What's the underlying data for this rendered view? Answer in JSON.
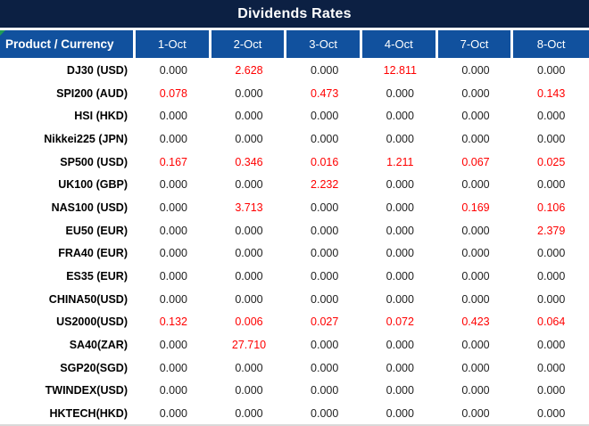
{
  "title": "Dividends Rates",
  "colors": {
    "title_bg": "#0c2043",
    "header_bg": "#11519e",
    "row_gray_label": "#d6d6d6",
    "row_gray_cell": "#eeeeee",
    "red_text": "#ff0000",
    "dark_text": "#1f1f1f",
    "flag_green": "#1f9d55",
    "gridline_white": "#ffffff",
    "gridline_gray": "#e4e4e4"
  },
  "icons": {
    "corner_flag": "green-corner-triangle-icon"
  },
  "table": {
    "product_header": "Product / Currency",
    "date_headers": [
      "1-Oct",
      "2-Oct",
      "3-Oct",
      "4-Oct",
      "7-Oct",
      "8-Oct"
    ],
    "rows": [
      {
        "product": "DJ30 (USD)",
        "values": [
          "0.000",
          "2.628",
          "0.000",
          "12.811",
          "0.000",
          "0.000"
        ],
        "red": [
          1,
          3
        ]
      },
      {
        "product": "SPI200 (AUD)",
        "values": [
          "0.078",
          "0.000",
          "0.473",
          "0.000",
          "0.000",
          "0.143"
        ],
        "red": [
          0,
          2,
          5
        ]
      },
      {
        "product": "HSI (HKD)",
        "values": [
          "0.000",
          "0.000",
          "0.000",
          "0.000",
          "0.000",
          "0.000"
        ],
        "red": []
      },
      {
        "product": "Nikkei225 (JPN)",
        "values": [
          "0.000",
          "0.000",
          "0.000",
          "0.000",
          "0.000",
          "0.000"
        ],
        "red": []
      },
      {
        "product": "SP500 (USD)",
        "values": [
          "0.167",
          "0.346",
          "0.016",
          "1.211",
          "0.067",
          "0.025"
        ],
        "red": [
          0,
          1,
          2,
          3,
          4,
          5
        ]
      },
      {
        "product": "UK100 (GBP)",
        "values": [
          "0.000",
          "0.000",
          "2.232",
          "0.000",
          "0.000",
          "0.000"
        ],
        "red": [
          2
        ]
      },
      {
        "product": "NAS100 (USD)",
        "values": [
          "0.000",
          "3.713",
          "0.000",
          "0.000",
          "0.169",
          "0.106"
        ],
        "red": [
          1,
          4,
          5
        ]
      },
      {
        "product": "EU50 (EUR)",
        "values": [
          "0.000",
          "0.000",
          "0.000",
          "0.000",
          "0.000",
          "2.379"
        ],
        "red": [
          5
        ]
      },
      {
        "product": "FRA40 (EUR)",
        "values": [
          "0.000",
          "0.000",
          "0.000",
          "0.000",
          "0.000",
          "0.000"
        ],
        "red": []
      },
      {
        "product": "ES35 (EUR)",
        "values": [
          "0.000",
          "0.000",
          "0.000",
          "0.000",
          "0.000",
          "0.000"
        ],
        "red": []
      },
      {
        "product": "CHINA50(USD)",
        "values": [
          "0.000",
          "0.000",
          "0.000",
          "0.000",
          "0.000",
          "0.000"
        ],
        "red": []
      },
      {
        "product": "US2000(USD)",
        "values": [
          "0.132",
          "0.006",
          "0.027",
          "0.072",
          "0.423",
          "0.064"
        ],
        "red": [
          0,
          1,
          2,
          3,
          4,
          5
        ]
      },
      {
        "product": "SA40(ZAR)",
        "values": [
          "0.000",
          "27.710",
          "0.000",
          "0.000",
          "0.000",
          "0.000"
        ],
        "red": [
          1
        ]
      },
      {
        "product": "SGP20(SGD)",
        "values": [
          "0.000",
          "0.000",
          "0.000",
          "0.000",
          "0.000",
          "0.000"
        ],
        "red": []
      },
      {
        "product": "TWINDEX(USD)",
        "values": [
          "0.000",
          "0.000",
          "0.000",
          "0.000",
          "0.000",
          "0.000"
        ],
        "red": []
      },
      {
        "product": "HKTECH(HKD)",
        "values": [
          "0.000",
          "0.000",
          "0.000",
          "0.000",
          "0.000",
          "0.000"
        ],
        "red": []
      }
    ]
  }
}
